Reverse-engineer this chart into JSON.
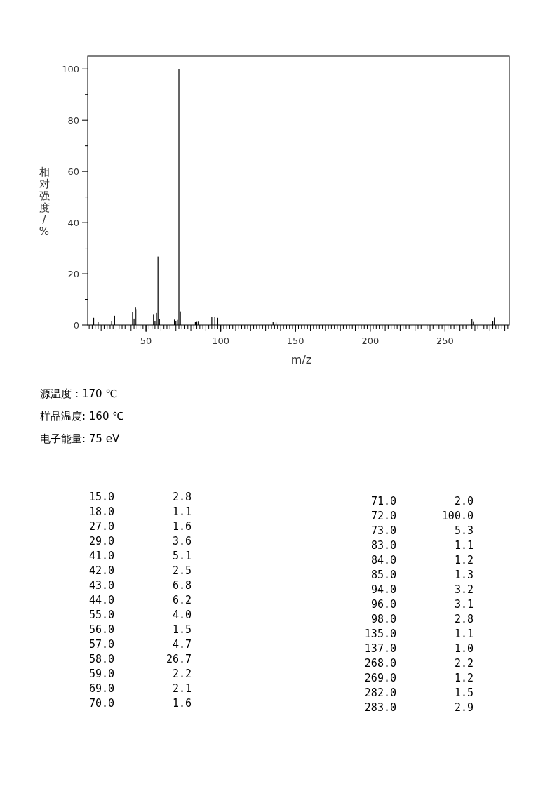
{
  "chart_data": [
    {
      "type": "bar",
      "xlabel": "m/z",
      "ylabel": "相对强度/%",
      "x": [
        15,
        18,
        27,
        29,
        41,
        42,
        43,
        44,
        55,
        56,
        57,
        58,
        59,
        69,
        70,
        71,
        72,
        73,
        83,
        84,
        85,
        94,
        96,
        98,
        135,
        137,
        268,
        269,
        282,
        283
      ],
      "values": [
        2.8,
        1.1,
        1.6,
        3.6,
        5.1,
        2.5,
        6.8,
        6.2,
        4.0,
        1.5,
        4.7,
        26.7,
        2.2,
        2.1,
        1.6,
        2.0,
        100.0,
        5.3,
        1.1,
        1.2,
        1.3,
        3.2,
        3.1,
        2.8,
        1.1,
        1.0,
        2.2,
        1.2,
        1.5,
        2.9
      ],
      "color": "#000000",
      "xlim": [
        11,
        293
      ],
      "xticks": [
        50,
        100,
        150,
        200,
        250
      ],
      "ylim": [
        0,
        105
      ],
      "yticks": [
        0,
        20,
        40,
        60,
        80,
        100
      ],
      "annotations": [
        "源温度：170 ℃",
        "样品温度: 160 ℃",
        "电子能量: 75 eV"
      ]
    },
    {
      "type": "other",
      "annotations": [
        "15.0",
        "2.8",
        "18.0",
        "1.1",
        "27.0",
        "1.6",
        "29.0",
        "3.6",
        "41.0",
        "5.1",
        "42.0",
        "2.5",
        "43.0",
        "6.8",
        "44.0",
        "6.2",
        "55.0",
        "4.0",
        "56.0",
        "1.5",
        "57.0",
        "4.7",
        "58.0",
        "26.7",
        "59.0",
        "2.2",
        "69.0",
        "2.1",
        "70.0",
        "1.6",
        "71.0",
        "2.0",
        "72.0",
        "100.0",
        "73.0",
        "5.3",
        "83.0",
        "1.1",
        "84.0",
        "1.2",
        "85.0",
        "1.3",
        "94.0",
        "3.2",
        "96.0",
        "3.1",
        "98.0",
        "2.8",
        "135.0",
        "1.1",
        "137.0",
        "1.0",
        "268.0",
        "2.2",
        "269.0",
        "1.2",
        "282.0",
        "1.5",
        "283.0",
        "2.9"
      ]
    }
  ]
}
